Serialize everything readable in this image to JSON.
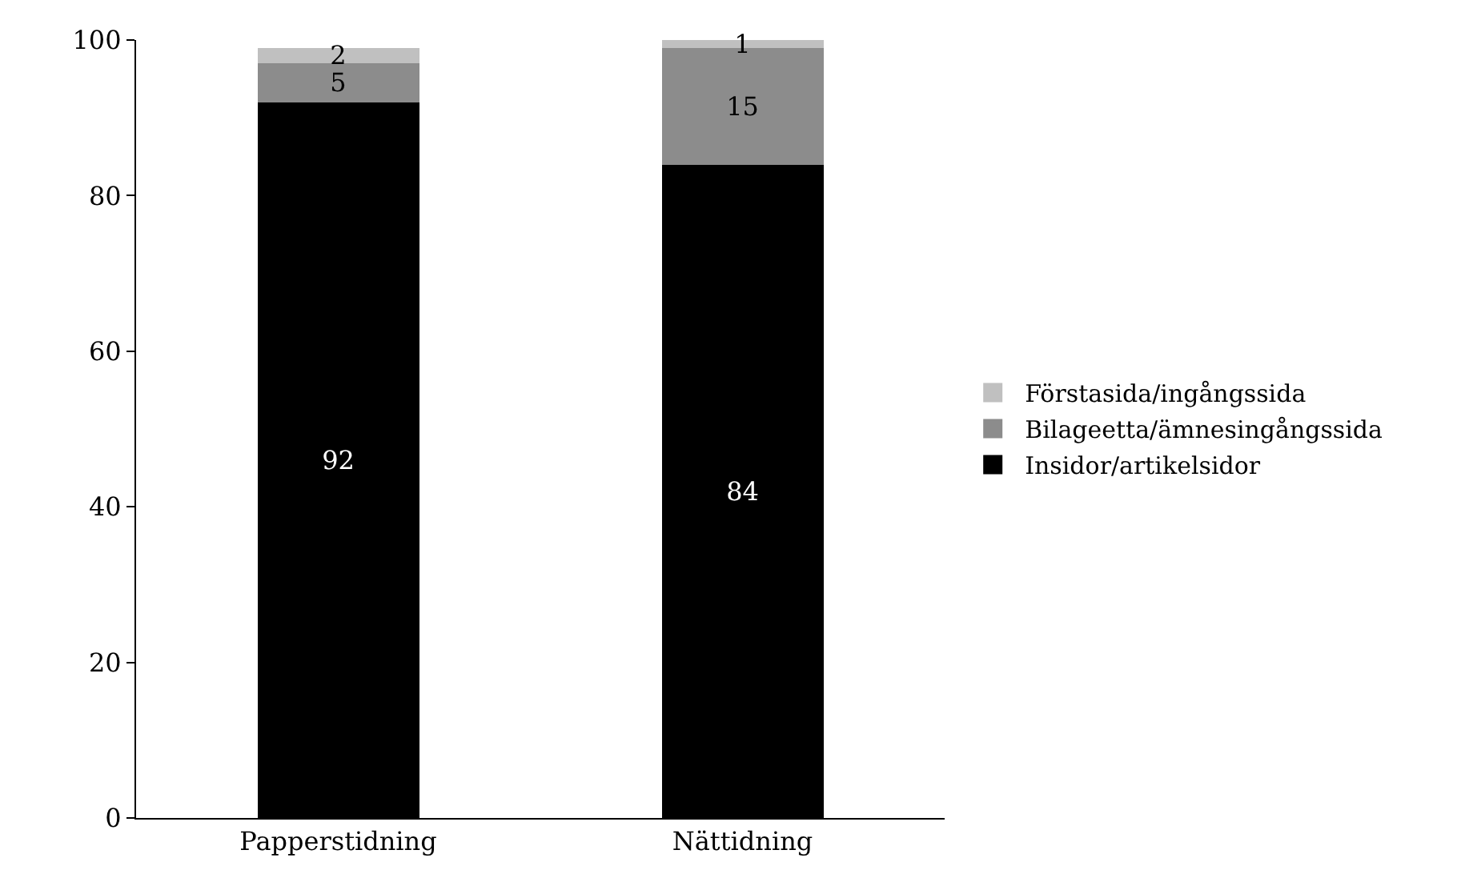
{
  "chart_data": {
    "type": "bar",
    "stacked": true,
    "categories": [
      "Papperstidning",
      "Nättidning"
    ],
    "series": [
      {
        "name": "Insidor/artikelsidor",
        "color": "#000000",
        "values": [
          92,
          84
        ]
      },
      {
        "name": "Bilageetta/ämnesingångssida",
        "color": "#8c8c8c",
        "values": [
          5,
          15
        ]
      },
      {
        "name": "Förstasida/ingångssida",
        "color": "#c0c0c0",
        "values": [
          2,
          1
        ]
      }
    ],
    "ylim": [
      0,
      100
    ],
    "yticks": [
      0,
      20,
      40,
      60,
      80,
      100
    ],
    "grid": false,
    "legend": "right",
    "data_labels": true
  }
}
